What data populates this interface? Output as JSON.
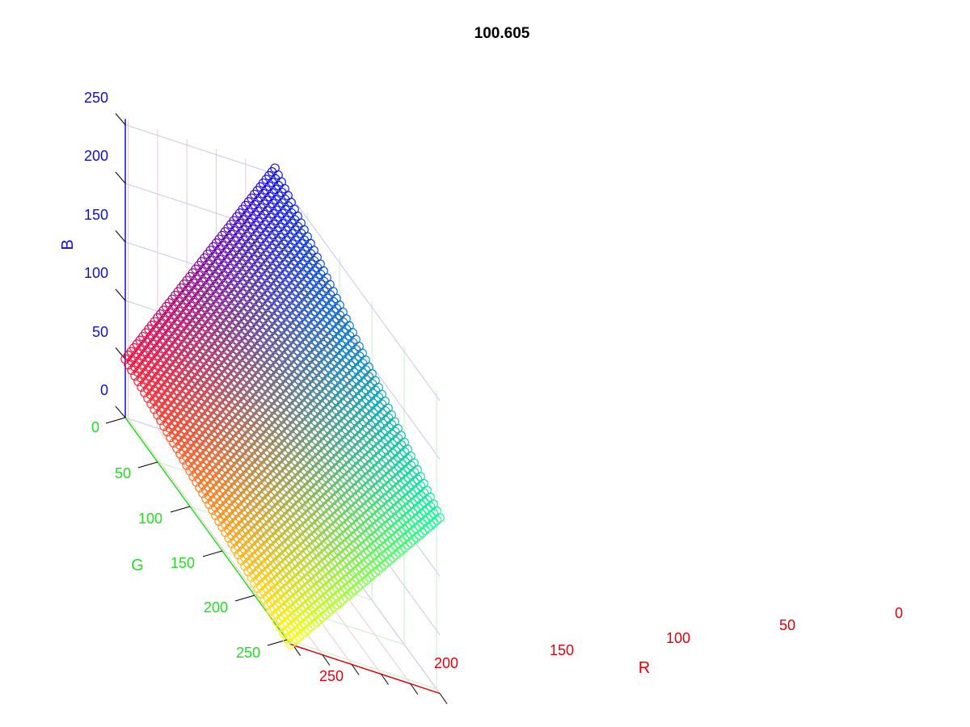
{
  "chart_data": {
    "type": "scatter",
    "projection": "3d",
    "title": "100.605",
    "grid": true,
    "marker": "hollow-circle",
    "axes": {
      "x": {
        "label": "R",
        "range": [
          0,
          255
        ],
        "ticks": [
          "0",
          "50",
          "100",
          "150",
          "200",
          "250"
        ],
        "color": "#e4000a"
      },
      "y": {
        "label": "G",
        "range": [
          0,
          255
        ],
        "ticks": [
          "0",
          "50",
          "100",
          "150",
          "200",
          "250"
        ],
        "color": "#22dd22"
      },
      "z": {
        "label": "B",
        "range": [
          0,
          255
        ],
        "ticks": [
          "0",
          "50",
          "100",
          "150",
          "200",
          "250"
        ],
        "color": "#1010cc"
      }
    },
    "surface": {
      "description_of_points": "regular grid of RGB colors lying on a plane; each point colored by its own RGB value",
      "grid_step": 5,
      "corners": [
        {
          "R": 255,
          "G": 0,
          "B": 50
        },
        {
          "R": 0,
          "G": 0,
          "B": 255
        },
        {
          "R": 0,
          "G": 255,
          "B": 150
        },
        {
          "R": 255,
          "G": 255,
          "B": 0
        }
      ]
    }
  }
}
